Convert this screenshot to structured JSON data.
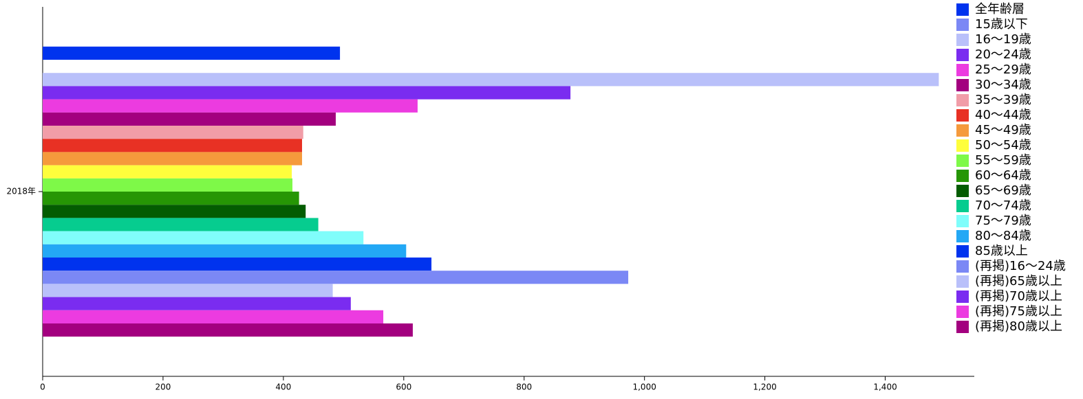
{
  "chart_data": {
    "type": "hbar",
    "categories": [
      "2018年"
    ],
    "xlim": [
      0,
      1548
    ],
    "xticks": [
      0,
      200,
      400,
      600,
      800,
      {
        "value": 1000,
        "label": "1,000"
      },
      {
        "value": 1200,
        "label": "1,200"
      },
      {
        "value": 1400,
        "label": "1,400"
      }
    ],
    "series": [
      {
        "name": "全年齢層",
        "color": "#0033ee",
        "values": [
          494
        ]
      },
      {
        "name": "15歳以下",
        "color": "#7b88f5",
        "values": [
          0
        ]
      },
      {
        "name": "16〜19歳",
        "color": "#b9c0fa",
        "values": [
          1489
        ]
      },
      {
        "name": "20〜24歳",
        "color": "#7a2cf0",
        "values": [
          877
        ]
      },
      {
        "name": "25〜29歳",
        "color": "#ec3be0",
        "values": [
          623
        ]
      },
      {
        "name": "30〜34歳",
        "color": "#a3007f",
        "values": [
          487
        ]
      },
      {
        "name": "35〜39歳",
        "color": "#f19da8",
        "values": [
          433
        ]
      },
      {
        "name": "40〜44歳",
        "color": "#e83124",
        "values": [
          431
        ]
      },
      {
        "name": "45〜49歳",
        "color": "#f59a3c",
        "values": [
          431
        ]
      },
      {
        "name": "50〜54歳",
        "color": "#fefe3c",
        "values": [
          414
        ]
      },
      {
        "name": "55〜59歳",
        "color": "#7ef948",
        "values": [
          415
        ]
      },
      {
        "name": "60〜64歳",
        "color": "#269605",
        "values": [
          426
        ]
      },
      {
        "name": "65〜69歳",
        "color": "#035c01",
        "values": [
          437
        ]
      },
      {
        "name": "70〜74歳",
        "color": "#06cc8f",
        "values": [
          458
        ]
      },
      {
        "name": "75〜79歳",
        "color": "#80fdfb",
        "values": [
          533
        ]
      },
      {
        "name": "80〜84歳",
        "color": "#23a8f5",
        "values": [
          604
        ]
      },
      {
        "name": "85歳以上",
        "color": "#0033ee",
        "values": [
          646
        ]
      },
      {
        "name": "(再掲)16〜24歳",
        "color": "#7b88f5",
        "values": [
          973
        ]
      },
      {
        "name": "(再掲)65歳以上",
        "color": "#b9c0fa",
        "values": [
          482
        ]
      },
      {
        "name": "(再掲)70歳以上",
        "color": "#7a2cf0",
        "values": [
          512
        ]
      },
      {
        "name": "(再掲)75歳以上",
        "color": "#ec3be0",
        "values": [
          566
        ]
      },
      {
        "name": "(再掲)80歳以上",
        "color": "#a3007f",
        "values": [
          615
        ]
      }
    ]
  }
}
